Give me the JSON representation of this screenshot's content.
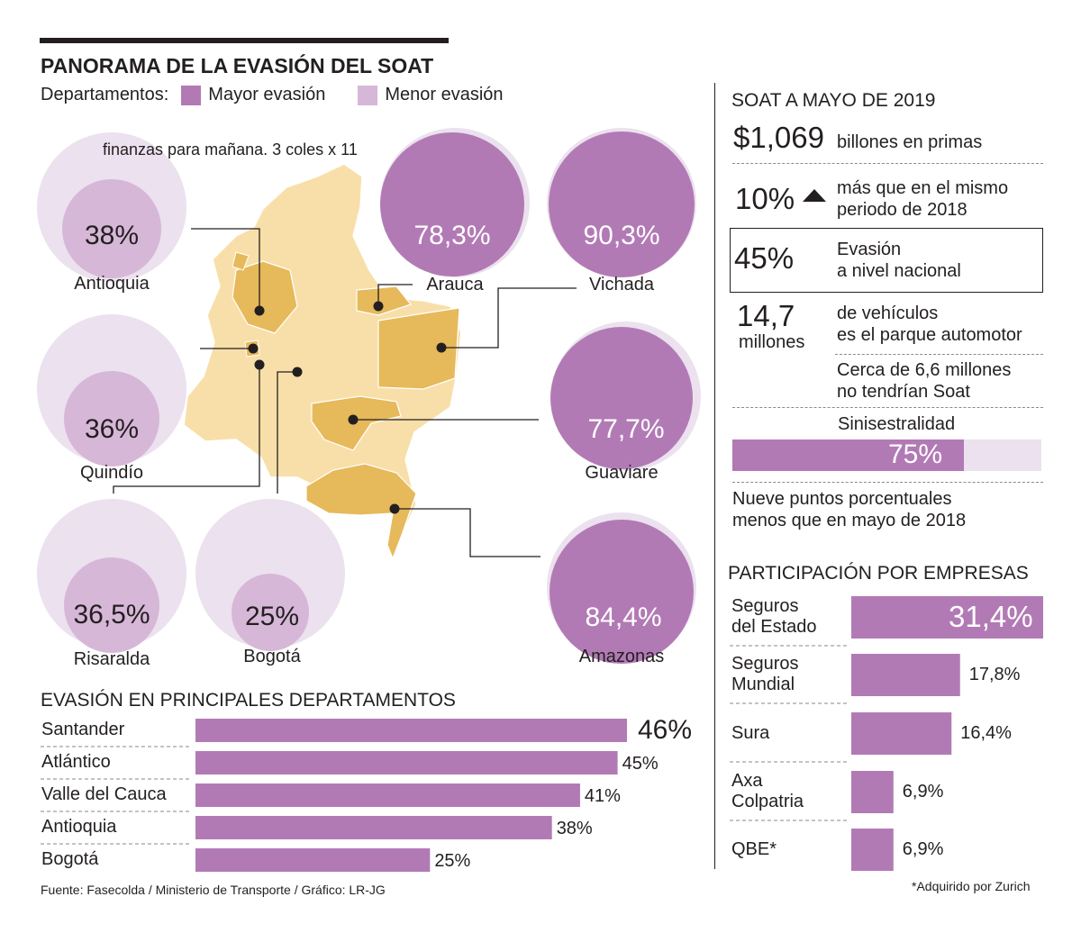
{
  "title": "PANORAMA DE LA EVASIÓN DEL SOAT",
  "legend": {
    "prefix": "Departamentos:",
    "items": [
      {
        "label": "Mayor evasión",
        "color": "#b27ab5"
      },
      {
        "label": "Menor evasión",
        "color": "#d7b7d8"
      }
    ]
  },
  "note": "finanzas para mañana. 3 coles x 11",
  "colors": {
    "accent": "#b27ab5",
    "accent_light": "#d7b7d8",
    "circle_bg": "#ece1ee",
    "map_base": "#f8dfa9",
    "map_highlight": "#e6b95a",
    "text": "#231f20"
  },
  "circles": [
    {
      "name": "Antioquia",
      "value": "38%",
      "level": "low",
      "pct": 38
    },
    {
      "name": "Quindío",
      "value": "36%",
      "level": "low",
      "pct": 36
    },
    {
      "name": "Risaralda",
      "value": "36,5%",
      "level": "low",
      "pct": 36.5
    },
    {
      "name": "Bogotá",
      "value": "25%",
      "level": "low",
      "pct": 25
    },
    {
      "name": "Arauca",
      "value": "78,3%",
      "level": "high",
      "pct": 78.3
    },
    {
      "name": "Vichada",
      "value": "90,3%",
      "level": "high",
      "pct": 90.3
    },
    {
      "name": "Guaviare",
      "value": "77,7%",
      "level": "high",
      "pct": 77.7
    },
    {
      "name": "Amazonas",
      "value": "84,4%",
      "level": "high",
      "pct": 84.4
    }
  ],
  "soat": {
    "header": "SOAT A MAYO DE 2019",
    "primas": {
      "value": "$1,069",
      "text": "billones en primas"
    },
    "growth": {
      "value": "10%",
      "line1": "más que en el mismo",
      "line2": "periodo de 2018",
      "icon": "triangle-up-icon"
    },
    "evasion": {
      "value": "45%",
      "line1": "Evasión",
      "line2": "a nivel nacional"
    },
    "parque": {
      "value": "14,7",
      "unit": "millones",
      "line1": "de vehículos",
      "line2": "es el parque automotor",
      "line3": "Cerca de 6,6 millones",
      "line4": "no tendrían Soat"
    },
    "siniestralidad": {
      "label": "Sinisestralidad",
      "value": "75%",
      "pct": 75,
      "line1": "Nueve puntos porcentuales",
      "line2": "menos que en mayo de 2018"
    }
  },
  "empresas": {
    "header": "PARTICIPACIÓN POR EMPRESAS",
    "footnote": "*Adquirido por Zurich"
  },
  "departamentos": {
    "header": "EVASIÓN EN PRINCIPALES DEPARTAMENTOS"
  },
  "source": "Fuente: Fasecolda / Ministerio de Transporte / Gráfico: LR-JG",
  "chart_data": [
    {
      "type": "bar",
      "orientation": "horizontal",
      "title": "EVASIÓN EN PRINCIPALES DEPARTAMENTOS",
      "categories": [
        "Santander",
        "Atlántico",
        "Valle del Cauca",
        "Antioquia",
        "Bogotá"
      ],
      "values": [
        46,
        45,
        41,
        38,
        25
      ],
      "labels": [
        "46%",
        "45%",
        "41%",
        "38%",
        "25%"
      ],
      "xlim": [
        0,
        46
      ],
      "grid": false
    },
    {
      "type": "bar",
      "orientation": "horizontal",
      "title": "PARTICIPACIÓN POR EMPRESAS",
      "categories": [
        [
          "Seguros",
          "del Estado"
        ],
        [
          "Seguros",
          "Mundial"
        ],
        [
          "Sura"
        ],
        [
          "Axa",
          "Colpatria"
        ],
        [
          "QBE*"
        ]
      ],
      "values": [
        31.4,
        17.8,
        16.4,
        6.9,
        6.9
      ],
      "labels": [
        "31,4%",
        "17,8%",
        "16,4%",
        "6,9%",
        "6,9%"
      ],
      "xlim": [
        0,
        31.4
      ],
      "grid": false
    }
  ]
}
